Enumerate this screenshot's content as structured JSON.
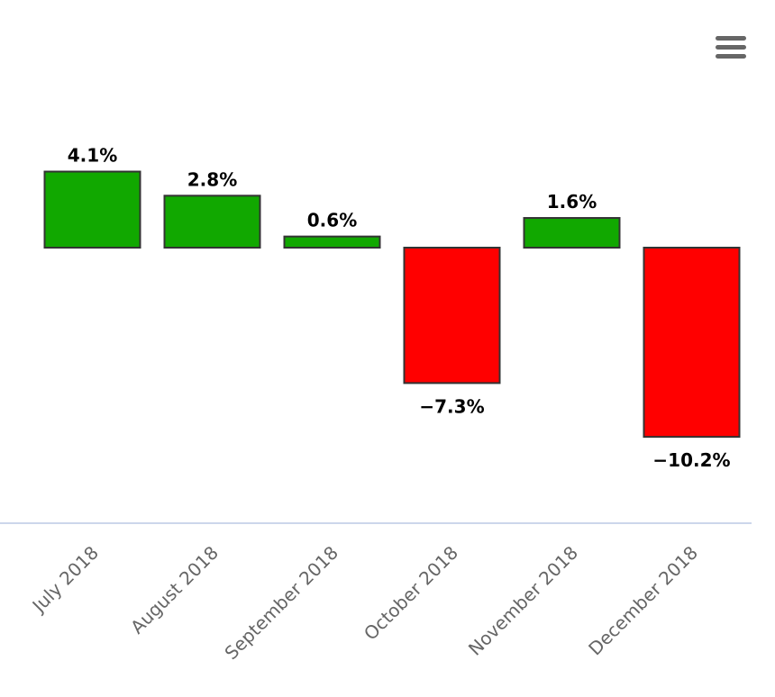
{
  "chart_data": {
    "type": "bar",
    "title": "",
    "xlabel": "",
    "ylabel": "",
    "categories": [
      "July 2018",
      "August 2018",
      "September 2018",
      "October 2018",
      "November 2018",
      "December 2018"
    ],
    "series": [
      {
        "values": [
          4.1,
          2.8,
          0.6,
          -7.3,
          1.6,
          -10.2
        ],
        "data_labels": [
          "4.1%",
          "2.8%",
          "0.6%",
          "−7.3%",
          "1.6%",
          "−10.2%"
        ]
      }
    ],
    "ylim": [
      -15.2,
      8.4
    ],
    "grid": false,
    "legend": "none",
    "colors": {
      "positive": "#11a800",
      "negative": "#ff0000",
      "bar_border": "#333333",
      "axis_line": "#ccd6eb"
    }
  },
  "menu": {
    "icon": "hamburger-menu-icon"
  }
}
